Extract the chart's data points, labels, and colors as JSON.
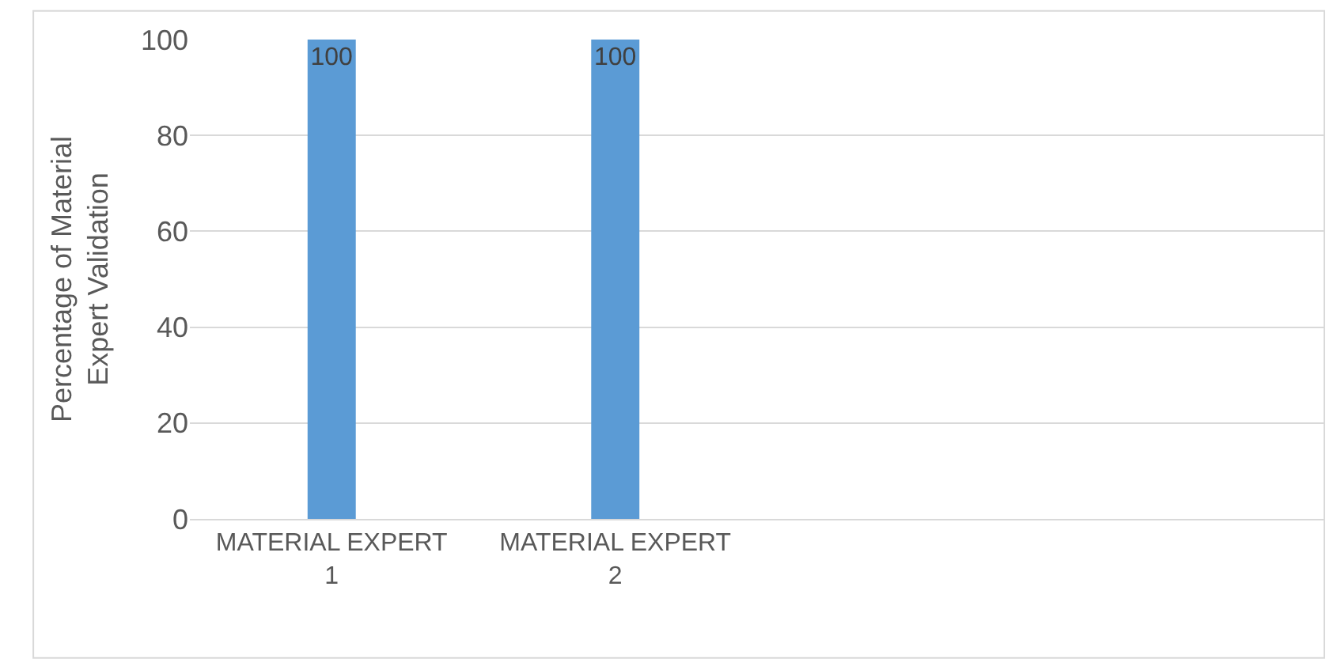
{
  "chart_data": {
    "type": "bar",
    "ylabel": "Percentage of Material Expert Validation",
    "categories": [
      "MATERIAL EXPERT 1",
      "MATERIAL EXPERT 2",
      null,
      null
    ],
    "values": [
      100,
      100,
      null,
      null
    ],
    "color": "#5b9bd5",
    "ylim": [
      0,
      100
    ],
    "yticks": [
      0,
      20,
      40,
      60,
      80,
      100
    ],
    "grid": "y",
    "data_labels": true
  }
}
